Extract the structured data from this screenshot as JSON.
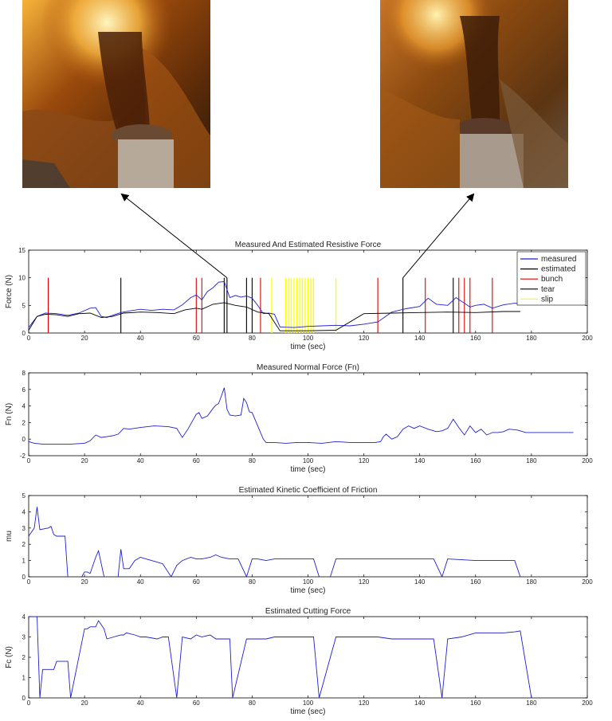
{
  "photos": [
    {
      "name": "photo-bunch",
      "icon": "cable-bundle-photo"
    },
    {
      "name": "photo-tear",
      "icon": "cable-bundle-photo"
    }
  ],
  "colors": {
    "measured": "#1f1fd0",
    "estimated": "#000000",
    "bunch": "#e00000",
    "tear": "#000000",
    "slip": "#ffff00"
  },
  "chart_data": [
    {
      "type": "line",
      "title": "Measured And Estimated Resistive Force",
      "xlabel": "time (sec)",
      "ylabel": "Force (N)",
      "xlim": [
        0,
        200
      ],
      "ylim": [
        0,
        15
      ],
      "xticks": [
        "0",
        "20",
        "40",
        "60",
        "80",
        "100",
        "120",
        "140",
        "160",
        "180",
        "200"
      ],
      "yticks": [
        "0",
        "5",
        "10",
        "15"
      ],
      "legend": [
        "measured",
        "estimated",
        "bunch",
        "tear",
        "slip"
      ],
      "legend_position": "top-right",
      "series": [
        {
          "name": "measured",
          "x": [
            0,
            3,
            6,
            10,
            14,
            18,
            22,
            24,
            26,
            28,
            30,
            33,
            36,
            40,
            44,
            48,
            52,
            55,
            58,
            60,
            62,
            64,
            66,
            68,
            70,
            72,
            74,
            76,
            78,
            80,
            82,
            84,
            86,
            88,
            90,
            95,
            100,
            105,
            110,
            115,
            120,
            125,
            130,
            135,
            140,
            143,
            146,
            150,
            153,
            156,
            158,
            160,
            163,
            166,
            170,
            174,
            176
          ],
          "y": [
            1,
            3,
            3.6,
            3.5,
            3.2,
            3.6,
            4.5,
            4.6,
            3,
            2.8,
            3.2,
            3.7,
            4,
            4.3,
            4.1,
            4.3,
            4.2,
            5.1,
            6.4,
            6.9,
            6,
            7.5,
            8.2,
            9.2,
            9.3,
            6.4,
            6.8,
            6.5,
            6.7,
            6.3,
            5,
            3.5,
            3.6,
            3.4,
            1.1,
            1,
            1.2,
            1.3,
            1.4,
            1.3,
            1.6,
            2,
            3.8,
            4.4,
            4.8,
            6.3,
            5.2,
            5,
            6.4,
            5.4,
            4.7,
            5,
            5.2,
            4.5,
            5.1,
            5.4,
            5.3
          ]
        },
        {
          "name": "estimated",
          "x": [
            0,
            3,
            6,
            10,
            14,
            18,
            22,
            26,
            30,
            34,
            40,
            46,
            52,
            56,
            60,
            62,
            66,
            70,
            74,
            78,
            82,
            86,
            90,
            95,
            100,
            110,
            120,
            130,
            140,
            150,
            160,
            170,
            176
          ],
          "y": [
            0.5,
            3,
            3.4,
            3.3,
            3,
            3.5,
            3.6,
            2.8,
            3,
            3.6,
            3.8,
            3.7,
            3.5,
            4.2,
            4.5,
            4.3,
            5.2,
            5.5,
            5,
            4.7,
            3.8,
            3.5,
            0.4,
            0.4,
            0.4,
            0.5,
            3.5,
            3.6,
            3.7,
            3.8,
            3.7,
            3.9,
            3.9
          ]
        }
      ],
      "events": {
        "bunch": [
          7,
          60,
          62,
          83,
          125,
          142,
          154,
          156,
          158,
          166
        ],
        "tear": [
          33,
          70,
          71,
          78,
          80,
          134,
          152
        ],
        "slip": [
          87,
          92,
          93,
          94,
          95,
          96,
          97,
          98,
          99,
          100,
          101,
          102,
          110
        ]
      },
      "annotations": [
        {
          "from_photo": "photo-bunch",
          "to_x": 71
        },
        {
          "from_photo": "photo-tear",
          "to_x": 134
        }
      ]
    },
    {
      "type": "line",
      "title": "Measured Normal Force (Fn)",
      "xlabel": "time (sec)",
      "ylabel": "Fn (N)",
      "xlim": [
        0,
        200
      ],
      "ylim": [
        -2,
        8
      ],
      "xticks": [
        "0",
        "20",
        "40",
        "60",
        "80",
        "100",
        "120",
        "140",
        "160",
        "180",
        "200"
      ],
      "yticks": [
        "-2",
        "0",
        "2",
        "4",
        "6",
        "8"
      ],
      "series": [
        {
          "x": [
            0,
            2,
            5,
            10,
            15,
            20,
            22,
            24,
            26,
            28,
            30,
            32,
            34,
            36,
            40,
            45,
            50,
            53,
            55,
            57,
            59,
            60,
            61,
            62,
            64,
            66,
            67,
            68,
            69,
            70,
            71,
            72,
            74,
            76,
            77,
            78,
            79,
            80,
            82,
            84,
            85,
            88,
            92,
            96,
            100,
            105,
            110,
            115,
            120,
            124,
            126,
            127,
            128,
            130,
            132,
            134,
            136,
            138,
            140,
            143,
            146,
            148,
            150,
            152,
            154,
            156,
            158,
            160,
            162,
            164,
            166,
            168,
            170,
            172,
            175,
            178,
            180,
            195
          ],
          "y": [
            -0.3,
            -0.5,
            -0.6,
            -0.6,
            -0.6,
            -0.5,
            -0.2,
            0.5,
            0.2,
            0.3,
            0.4,
            0.6,
            1.3,
            1.2,
            1.4,
            1.6,
            1.5,
            1.3,
            0.2,
            1.2,
            2.4,
            3,
            3.2,
            2.5,
            2.8,
            3.7,
            4.1,
            4.3,
            5.2,
            6.2,
            3.6,
            2.9,
            2.8,
            2.9,
            4.9,
            4.4,
            3.3,
            3.2,
            1.6,
            0,
            -0.4,
            -0.4,
            -0.5,
            -0.4,
            -0.4,
            -0.5,
            -0.3,
            -0.4,
            -0.4,
            -0.4,
            -0.3,
            0.3,
            0.6,
            0,
            0.3,
            1.2,
            1.6,
            1.3,
            1.6,
            1.2,
            0.9,
            1,
            1.3,
            2.4,
            1.4,
            0.5,
            1.6,
            0.8,
            1.2,
            0.5,
            0.8,
            0.8,
            0.9,
            1.2,
            1.1,
            0.8,
            0.8,
            0.8
          ]
        }
      ]
    },
    {
      "type": "line",
      "title": "Estimated Kinetic Coefficient of Friction",
      "xlabel": "time (sec)",
      "ylabel": "mu",
      "xlim": [
        0,
        200
      ],
      "ylim": [
        0,
        5
      ],
      "xticks": [
        "0",
        "20",
        "40",
        "60",
        "80",
        "100",
        "120",
        "140",
        "160",
        "180",
        "200"
      ],
      "yticks": [
        "0",
        "1",
        "2",
        "3",
        "4",
        "5"
      ],
      "series": [
        {
          "x": [
            0,
            2,
            3,
            4,
            7,
            8,
            9,
            10,
            13,
            14,
            15,
            19,
            20,
            21,
            22,
            24,
            25,
            27,
            28,
            30,
            32,
            33,
            34,
            36,
            38,
            40,
            42,
            46,
            48,
            51,
            53,
            55,
            58,
            60,
            62,
            65,
            67,
            69,
            72,
            74,
            75,
            78,
            80,
            82,
            85,
            88,
            90,
            92,
            95,
            100,
            102,
            104,
            108,
            110,
            115,
            120,
            125,
            130,
            135,
            140,
            145,
            148,
            150,
            155,
            160,
            165,
            170,
            174,
            176,
            180,
            195
          ],
          "y": [
            2.5,
            3,
            4.3,
            2.9,
            3,
            3.1,
            2.6,
            2.5,
            2.5,
            0,
            0,
            0,
            0.3,
            0.3,
            0.2,
            1.2,
            1.6,
            0,
            0,
            0,
            0,
            1.7,
            0.5,
            0.5,
            1,
            1.2,
            1.1,
            0.9,
            0.8,
            0,
            0.7,
            1,
            1.2,
            1.1,
            1.1,
            1.2,
            1.35,
            1.2,
            1.1,
            1.1,
            1.1,
            0,
            1.1,
            1.1,
            1,
            1.1,
            1.1,
            1.1,
            1.1,
            1.1,
            1.1,
            0,
            0,
            1.1,
            1.1,
            1.1,
            1.1,
            1.1,
            1.1,
            1.1,
            1.1,
            0,
            1.1,
            1.05,
            1,
            1,
            1,
            1,
            0,
            0,
            0
          ]
        }
      ]
    },
    {
      "type": "line",
      "title": "Estimated Cutting Force",
      "xlabel": "time (sec)",
      "ylabel": "Fc (N)",
      "xlim": [
        0,
        200
      ],
      "ylim": [
        0,
        4
      ],
      "xticks": [
        "0",
        "20",
        "40",
        "60",
        "80",
        "100",
        "120",
        "140",
        "160",
        "180",
        "200"
      ],
      "yticks": [
        "0",
        "1",
        "2",
        "3",
        "4"
      ],
      "series": [
        {
          "x": [
            0,
            3,
            4,
            5,
            9,
            10,
            14,
            15,
            20,
            21,
            22,
            24,
            25,
            26,
            27,
            28,
            33,
            34,
            35,
            38,
            40,
            42,
            46,
            48,
            50,
            53,
            55,
            58,
            60,
            62,
            65,
            67,
            69,
            72,
            73,
            78,
            80,
            82,
            85,
            88,
            90,
            95,
            100,
            102,
            104,
            110,
            115,
            120,
            125,
            130,
            135,
            140,
            145,
            148,
            150,
            155,
            160,
            165,
            170,
            174,
            176,
            180,
            195
          ],
          "y": [
            4,
            4,
            0,
            1.4,
            1.4,
            1.8,
            1.8,
            0,
            3.4,
            3.4,
            3.5,
            3.5,
            3.8,
            3.6,
            3.4,
            2.9,
            3.1,
            3.1,
            3.2,
            3.1,
            3,
            3,
            2.9,
            3,
            3,
            0,
            3,
            2.9,
            3.1,
            3,
            3.1,
            2.9,
            2.9,
            2.9,
            0,
            2.9,
            2.9,
            2.9,
            2.9,
            3,
            3,
            3,
            3,
            3,
            0,
            3,
            3,
            3,
            3,
            2.9,
            2.9,
            2.9,
            2.9,
            0,
            2.9,
            3,
            3.2,
            3.2,
            3.2,
            3.25,
            3.3,
            0,
            0
          ]
        }
      ]
    }
  ]
}
